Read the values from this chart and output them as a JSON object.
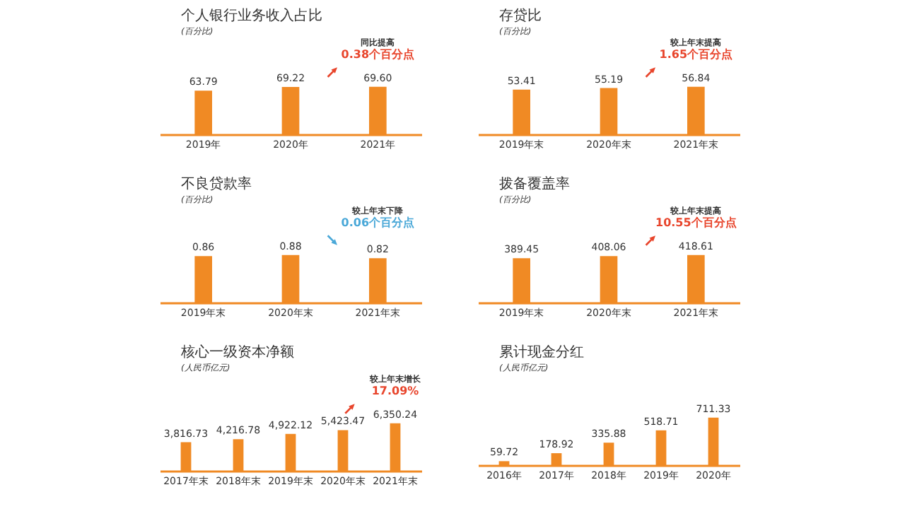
{
  "chart_data": [
    {
      "type": "bar",
      "title": "个人银行业务收入占比",
      "subtitle": "(百分比)",
      "categories": [
        "2019年",
        "2020年",
        "2021年"
      ],
      "values": [
        63.79,
        69.22,
        69.6
      ],
      "value_labels": [
        "63.79",
        "69.22",
        "69.60"
      ],
      "color": "#f08a24",
      "annotations": [
        "同比提高",
        "0.38个百分点"
      ]
    },
    {
      "type": "bar",
      "title": "存贷比",
      "subtitle": "(百分比)",
      "categories": [
        "2019年末",
        "2020年末",
        "2021年末"
      ],
      "values": [
        53.41,
        55.19,
        56.84
      ],
      "color": "#f08a24",
      "data_labels": true,
      "annotations": [
        "较上年末提高",
        "1.65个百分点"
      ]
    },
    {
      "type": "bar",
      "title": "不良贷款率",
      "subtitle": "(百分比)",
      "categories": [
        "2019年末",
        "2020年末",
        "2021年末"
      ],
      "values": [
        0.86,
        0.88,
        0.82
      ],
      "color": "#f08a24",
      "data_labels": true,
      "annotations": [
        "较上年末下降",
        "0.06个百分点"
      ]
    },
    {
      "type": "bar",
      "title": "拨备覆盖率",
      "subtitle": "(百分比)",
      "categories": [
        "2019年末",
        "2020年末",
        "2021年末"
      ],
      "values": [
        389.45,
        408.06,
        418.61
      ],
      "color": "#f08a24",
      "data_labels": true,
      "annotations": [
        "较上年末提高",
        "10.55个百分点"
      ]
    },
    {
      "type": "bar",
      "title": "核心一级资本净额",
      "subtitle": "(人民币亿元)",
      "categories": [
        "2017年末",
        "2018年末",
        "2019年末",
        "2020年末",
        "2021年末"
      ],
      "values": [
        3816.73,
        4216.78,
        4922.12,
        5423.47,
        6350.24
      ],
      "value_labels": [
        "3,816.73",
        "4,216.78",
        "4,922.12",
        "5,423.47",
        "6,350.24"
      ],
      "color": "#f08a24",
      "annotations": [
        "较上年末增长",
        "17.09%"
      ]
    },
    {
      "type": "bar",
      "title": "累计现金分红",
      "subtitle": "(人民币亿元)",
      "categories": [
        "2016年",
        "2017年",
        "2018年",
        "2019年",
        "2020年"
      ],
      "values": [
        59.72,
        178.92,
        335.88,
        518.71,
        711.33
      ],
      "color": "#f08a24",
      "data_labels": true
    }
  ]
}
